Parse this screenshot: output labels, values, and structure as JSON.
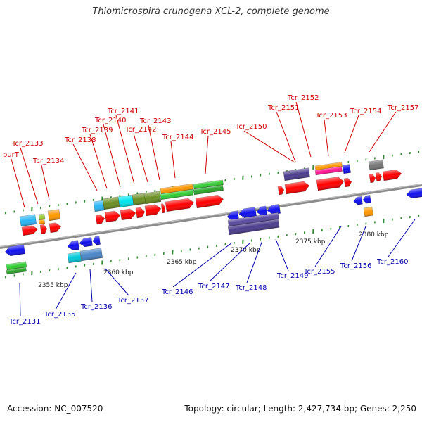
{
  "title": "Thiomicrospira crunogena XCL-2, complete genome",
  "footer": {
    "accession": "Accession: NC_007520",
    "topology": "Topology: circular; Length: 2,427,734 bp; Genes: 2,250"
  },
  "colors": {
    "backbone": "#8c8c8c",
    "top_label": "#cc0000",
    "bottom_label": "#0000aa",
    "tick": "#2e8b2e",
    "red_gene": "#ff0000",
    "blue_gene": "#1010ee"
  },
  "scale_labels": [
    "2355 kbp",
    "2360 kbp",
    "2365 kbp",
    "2370 kbp",
    "2375 kbp",
    "2380 kbp"
  ],
  "top_genes": [
    "purT",
    "Tcr_2133",
    "Tcr_2134",
    "Tcr_2138",
    "Tcr_2139",
    "Tcr_2140",
    "Tcr_2141",
    "Tcr_2142",
    "Tcr_2143",
    "Tcr_2144",
    "Tcr_2145",
    "Tcr_2150",
    "Tcr_2151",
    "Tcr_2152",
    "Tcr_2153",
    "Tcr_2154",
    "Tcr_2157"
  ],
  "bottom_genes": [
    "Tcr_2131",
    "Tcr_2135",
    "Tcr_2136",
    "Tcr_2137",
    "Tcr_2146",
    "Tcr_2147",
    "Tcr_2148",
    "Tcr_2149",
    "Tcr_2155",
    "Tcr_2156",
    "Tcr_2160"
  ]
}
